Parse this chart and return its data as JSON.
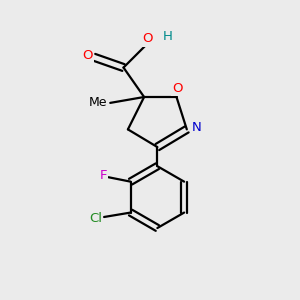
{
  "background_color": "#ebebeb",
  "bond_color": "#000000",
  "atom_colors": {
    "O": "#ff0000",
    "N": "#0000cd",
    "F": "#cc00cc",
    "Cl": "#228b22",
    "H": "#008b8b",
    "C": "#000000"
  },
  "figsize": [
    3.0,
    3.0
  ],
  "dpi": 100,
  "lw": 1.6,
  "fs": 9.5
}
